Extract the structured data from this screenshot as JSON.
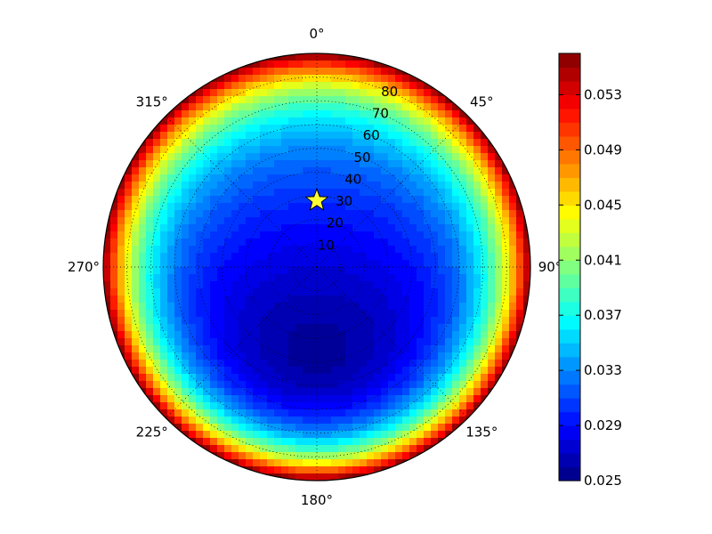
{
  "chart_data": {
    "type": "heatmap",
    "projection": "polar",
    "theta_direction": "clockwise",
    "theta_zero": "top",
    "theta_labels": [
      "0°",
      "45°",
      "90°",
      "135°",
      "180°",
      "225°",
      "270°",
      "315°"
    ],
    "theta_values": [
      0,
      45,
      90,
      135,
      180,
      225,
      270,
      315
    ],
    "radial_labels": [
      "10",
      "20",
      "30",
      "40",
      "50",
      "60",
      "70",
      "80"
    ],
    "radial_values": [
      10,
      20,
      30,
      40,
      50,
      60,
      70,
      80
    ],
    "rlim": [
      0,
      90
    ],
    "grid": true,
    "colormap": "jet",
    "colorbar": {
      "min": 0.025,
      "max": 0.056,
      "ticks": [
        "0.025",
        "0.029",
        "0.033",
        "0.037",
        "0.041",
        "0.045",
        "0.049",
        "0.053"
      ],
      "tick_values": [
        0.025,
        0.029,
        0.033,
        0.037,
        0.041,
        0.045,
        0.049,
        0.053
      ]
    },
    "field_model": {
      "min_point": {
        "theta": 180,
        "r": 40,
        "value": 0.0255
      },
      "edge_value": 0.056,
      "center_value": 0.0295
    },
    "marker": {
      "shape": "star",
      "theta": 0,
      "r": 28,
      "color": "#ffff33"
    }
  }
}
